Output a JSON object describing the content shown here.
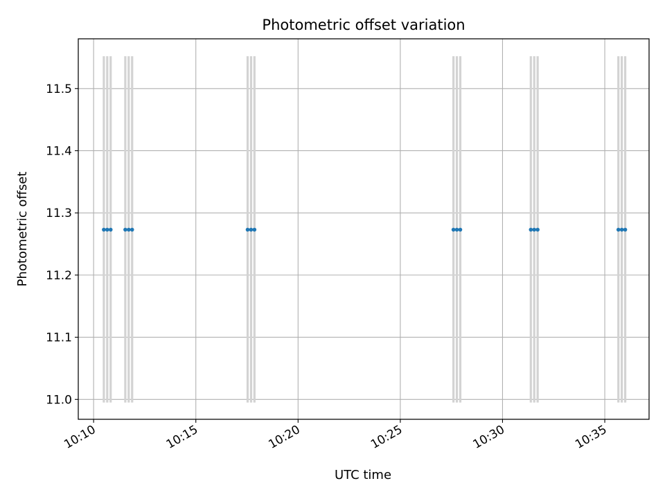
{
  "chart_data": {
    "type": "scatter",
    "title": "Photometric offset variation",
    "xlabel": "UTC time",
    "ylabel": "Photometric offset",
    "x_axis_type": "time",
    "xlim": [
      "10:09:15",
      "10:37:10"
    ],
    "ylim": [
      10.968,
      11.58
    ],
    "xticks": [
      "10:10",
      "10:15",
      "10:20",
      "10:25",
      "10:30",
      "10:35"
    ],
    "yticks": [
      11.0,
      11.1,
      11.2,
      11.3,
      11.4,
      11.5
    ],
    "ytick_labels": [
      "11.0",
      "11.1",
      "11.2",
      "11.3",
      "11.4",
      "11.5"
    ],
    "grid": true,
    "series": [
      {
        "marker_color": "#1f77b4",
        "x": [
          "10:10:30",
          "10:10:40",
          "10:10:50",
          "10:11:33",
          "10:11:43",
          "10:11:53",
          "10:17:32",
          "10:17:42",
          "10:17:52",
          "10:27:36",
          "10:27:46",
          "10:27:56",
          "10:31:23",
          "10:31:33",
          "10:31:43",
          "10:35:40",
          "10:35:50",
          "10:36:00"
        ],
        "y": [
          11.273,
          11.273,
          11.273,
          11.273,
          11.273,
          11.273,
          11.273,
          11.273,
          11.273,
          11.273,
          11.273,
          11.273,
          11.273,
          11.273,
          11.273,
          11.273,
          11.273,
          11.273
        ]
      }
    ],
    "vertical_bands": {
      "color": "#d3d3d3",
      "y_range": [
        10.995,
        11.552
      ],
      "x": [
        "10:10:30",
        "10:10:40",
        "10:10:50",
        "10:11:33",
        "10:11:43",
        "10:11:53",
        "10:17:32",
        "10:17:42",
        "10:17:52",
        "10:27:36",
        "10:27:46",
        "10:27:56",
        "10:31:23",
        "10:31:33",
        "10:31:43",
        "10:35:40",
        "10:35:50",
        "10:36:00"
      ]
    }
  }
}
